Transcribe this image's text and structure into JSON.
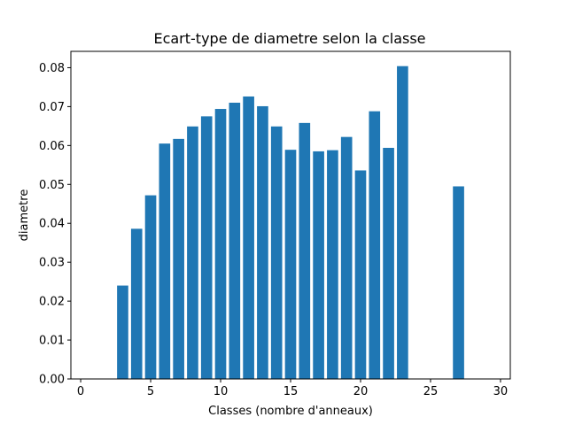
{
  "chart_data": {
    "type": "bar",
    "title": "Ecart-type de diametre selon la classe",
    "xlabel": "Classes (nombre d'anneaux)",
    "ylabel": "diametre",
    "xlim": [
      -0.7,
      30.7
    ],
    "ylim": [
      0,
      0.0842
    ],
    "xticks": [
      0,
      5,
      10,
      15,
      20,
      25,
      30
    ],
    "yticks": [
      0.0,
      0.01,
      0.02,
      0.03,
      0.04,
      0.05,
      0.06,
      0.07,
      0.08
    ],
    "bar_color": "#1f77b4",
    "bar_width": 0.8,
    "grid": false,
    "x": [
      3,
      4,
      5,
      6,
      7,
      8,
      9,
      10,
      11,
      12,
      13,
      14,
      15,
      16,
      17,
      18,
      19,
      20,
      21,
      22,
      23,
      27
    ],
    "values": [
      0.024,
      0.0386,
      0.0472,
      0.0605,
      0.0617,
      0.0649,
      0.0675,
      0.0694,
      0.071,
      0.0726,
      0.0701,
      0.0649,
      0.0589,
      0.0658,
      0.0585,
      0.0588,
      0.0622,
      0.0536,
      0.0688,
      0.0594,
      0.0804,
      0.0495
    ]
  }
}
